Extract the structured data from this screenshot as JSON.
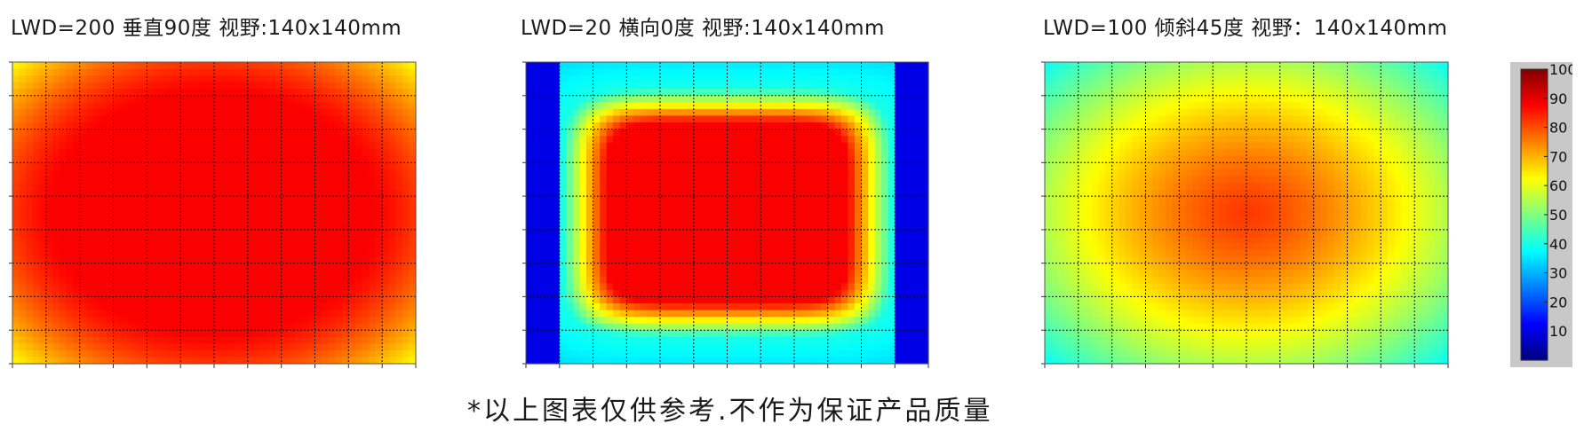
{
  "chart_data": [
    {
      "type": "heatmap",
      "title": "LWD=200  垂直90度   视野:140x140mm",
      "grid": true,
      "colormap": "jet",
      "zlim": [
        0,
        100
      ],
      "profile": {
        "shape": "center-peak",
        "center_value": 88,
        "corner_value": 62,
        "flat_core": 0.55,
        "side_bands": false
      }
    },
    {
      "type": "heatmap",
      "title": "LWD=20  横向0度  视野:140x140mm",
      "grid": true,
      "colormap": "jet",
      "zlim": [
        0,
        100
      ],
      "profile": {
        "shape": "rounded-square",
        "center_value": 88,
        "ring_value": 40,
        "edge_value": 30,
        "side_bands": true,
        "side_band_value": 10
      }
    },
    {
      "type": "heatmap",
      "title": "LWD=100 倾斜45度  视野：140x140mm",
      "grid": true,
      "colormap": "jet",
      "zlim": [
        0,
        100
      ],
      "profile": {
        "shape": "center-peak",
        "center_value": 82,
        "corner_value": 38,
        "flat_core": 0.0,
        "side_bands": false
      }
    }
  ],
  "colorbar": {
    "ticks": [
      "100",
      "90",
      "80",
      "70",
      "60",
      "50",
      "40",
      "30",
      "20",
      "10"
    ],
    "min": 0,
    "max": 100
  },
  "footnote": "*以上图表仅供参考.不作为保证产品质量"
}
